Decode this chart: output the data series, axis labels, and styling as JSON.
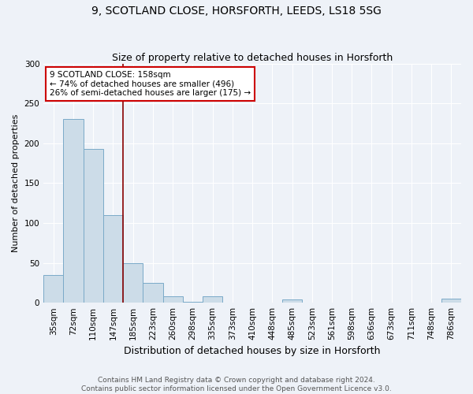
{
  "title1": "9, SCOTLAND CLOSE, HORSFORTH, LEEDS, LS18 5SG",
  "title2": "Size of property relative to detached houses in Horsforth",
  "xlabel": "Distribution of detached houses by size in Horsforth",
  "ylabel": "Number of detached properties",
  "categories": [
    "35sqm",
    "72sqm",
    "110sqm",
    "147sqm",
    "185sqm",
    "223sqm",
    "260sqm",
    "298sqm",
    "335sqm",
    "373sqm",
    "410sqm",
    "448sqm",
    "485sqm",
    "523sqm",
    "561sqm",
    "598sqm",
    "636sqm",
    "673sqm",
    "711sqm",
    "748sqm",
    "786sqm"
  ],
  "values": [
    35,
    230,
    193,
    110,
    50,
    25,
    8,
    1,
    8,
    0,
    0,
    0,
    4,
    0,
    0,
    0,
    0,
    0,
    0,
    0,
    5
  ],
  "bar_color": "#ccdce8",
  "bar_edge_color": "#7aaac8",
  "annotation_box_text": "9 SCOTLAND CLOSE: 158sqm\n← 74% of detached houses are smaller (496)\n26% of semi-detached houses are larger (175) →",
  "annotation_box_color": "#cc0000",
  "vline_color": "#880000",
  "ylim": [
    0,
    300
  ],
  "yticks": [
    0,
    50,
    100,
    150,
    200,
    250,
    300
  ],
  "fig_bg": "#eef2f8",
  "ax_bg": "#eef2f8",
  "grid_color": "#ffffff",
  "footer": "Contains HM Land Registry data © Crown copyright and database right 2024.\nContains public sector information licensed under the Open Government Licence v3.0.",
  "title1_fontsize": 10,
  "title2_fontsize": 9,
  "xlabel_fontsize": 9,
  "ylabel_fontsize": 8,
  "tick_fontsize": 7.5,
  "footer_fontsize": 6.5,
  "annot_fontsize": 7.5
}
